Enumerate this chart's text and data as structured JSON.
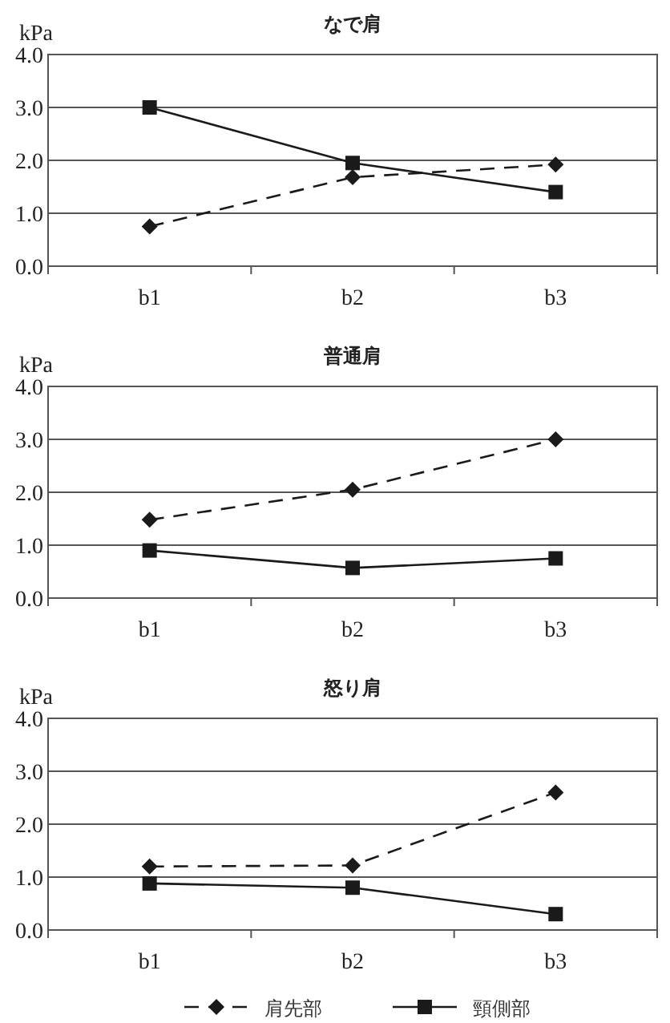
{
  "chart_data": [
    {
      "type": "line",
      "title": "なで肩",
      "ylabel": "kPa",
      "categories": [
        "b1",
        "b2",
        "b3"
      ],
      "ylim": [
        0,
        4
      ],
      "yticks": [
        {
          "value": 0,
          "label": "0.0"
        },
        {
          "value": 1,
          "label": "1.0"
        },
        {
          "value": 2,
          "label": "2.0"
        },
        {
          "value": 3,
          "label": "3.0"
        },
        {
          "value": 4,
          "label": "4.0"
        }
      ],
      "grid": "y",
      "series": [
        {
          "color": "#1a1a1a",
          "values": [
            0.75,
            1.68,
            1.92
          ],
          "marker": "diamond",
          "line_style": "dashed"
        },
        {
          "color": "#1a1a1a",
          "values": [
            3.0,
            1.95,
            1.4
          ],
          "marker": "square",
          "line_style": "solid"
        }
      ]
    },
    {
      "type": "line",
      "title": "普通肩",
      "ylabel": "kPa",
      "categories": [
        "b1",
        "b2",
        "b3"
      ],
      "ylim": [
        0,
        4
      ],
      "yticks": [
        {
          "value": 0,
          "label": "0.0"
        },
        {
          "value": 1,
          "label": "1.0"
        },
        {
          "value": 2,
          "label": "2.0"
        },
        {
          "value": 3,
          "label": "3.0"
        },
        {
          "value": 4,
          "label": "4.0"
        }
      ],
      "grid": "y",
      "series": [
        {
          "color": "#1a1a1a",
          "values": [
            1.48,
            2.05,
            3.0
          ],
          "marker": "diamond",
          "line_style": "dashed"
        },
        {
          "color": "#1a1a1a",
          "values": [
            0.9,
            0.57,
            0.75
          ],
          "marker": "square",
          "line_style": "solid"
        }
      ]
    },
    {
      "type": "line",
      "title": "怒り肩",
      "ylabel": "kPa",
      "categories": [
        "b1",
        "b2",
        "b3"
      ],
      "ylim": [
        0,
        4
      ],
      "yticks": [
        {
          "value": 0,
          "label": "0.0"
        },
        {
          "value": 1,
          "label": "1.0"
        },
        {
          "value": 2,
          "label": "2.0"
        },
        {
          "value": 3,
          "label": "3.0"
        },
        {
          "value": 4,
          "label": "4.0"
        }
      ],
      "grid": "y",
      "legend": "bottom",
      "series": [
        {
          "name": "肩先部",
          "color": "#1a1a1a",
          "values": [
            1.2,
            1.22,
            2.6
          ],
          "marker": "diamond",
          "line_style": "dashed"
        },
        {
          "name": "頸側部",
          "color": "#1a1a1a",
          "values": [
            0.88,
            0.8,
            0.3
          ],
          "marker": "square",
          "line_style": "solid"
        }
      ]
    }
  ]
}
